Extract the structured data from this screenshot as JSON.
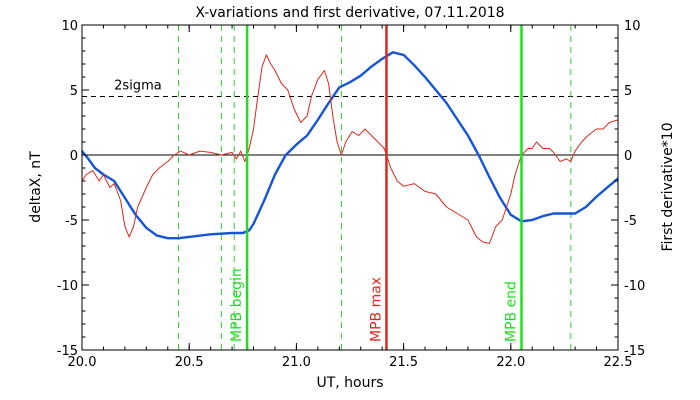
{
  "chart_data": {
    "type": "line",
    "title": "X-variations and first derivative, 07.11.2018",
    "xlabel": "UT, hours",
    "ylabel_left": "deltaX, nT",
    "ylabel_right": "First derivative*10",
    "xlim": [
      20.0,
      22.5
    ],
    "ylim": [
      -15,
      10
    ],
    "y2lim": [
      -15,
      10
    ],
    "x_ticks": [
      "20.0",
      "20.5",
      "21.0",
      "21.5",
      "22.0",
      "22.5"
    ],
    "x_tick_values": [
      20.0,
      20.5,
      21.0,
      21.5,
      22.0,
      22.5
    ],
    "y_ticks": [
      "10",
      "5",
      "0",
      "-5",
      "-10",
      "-15"
    ],
    "y_tick_values": [
      10,
      5,
      0,
      -5,
      -10,
      -15
    ],
    "y2_ticks": [
      "10",
      "5",
      "0",
      "-5",
      "-10",
      "-15"
    ],
    "y2_tick_values": [
      10,
      5,
      0,
      -5,
      -10,
      -15
    ],
    "colors": {
      "deltaX": "#1555d6",
      "derivative": "#d62b1f",
      "mpb": "#22dd22",
      "mpb_max": "#d62b1f",
      "dashed_green": "#33cc33",
      "axes": "#000000"
    },
    "threshold": {
      "label": "2sigma",
      "value": 4.5
    },
    "zero_line": 0,
    "markers": [
      {
        "x": 20.77,
        "label": "MPB begin",
        "color": "#22dd22"
      },
      {
        "x": 21.42,
        "label": "MPB max",
        "color": "#d62b1f"
      },
      {
        "x": 22.05,
        "label": "MPB end",
        "color": "#22dd22"
      }
    ],
    "dashed_verticals": [
      20.45,
      20.65,
      20.71,
      21.21,
      22.28
    ],
    "series": [
      {
        "key": "deltaX",
        "color": "#1555d6",
        "x": [
          20.0,
          20.03,
          20.06,
          20.1,
          20.15,
          20.2,
          20.25,
          20.3,
          20.35,
          20.4,
          20.45,
          20.5,
          20.6,
          20.7,
          20.75,
          20.78,
          20.8,
          20.85,
          20.9,
          20.95,
          21.0,
          21.05,
          21.1,
          21.15,
          21.2,
          21.25,
          21.3,
          21.35,
          21.4,
          21.45,
          21.5,
          21.55,
          21.6,
          21.7,
          21.8,
          21.85,
          21.9,
          21.95,
          22.0,
          22.05,
          22.1,
          22.15,
          22.2,
          22.25,
          22.3,
          22.35,
          22.4,
          22.45,
          22.5
        ],
        "values": [
          0.3,
          -0.3,
          -1.0,
          -1.5,
          -2.0,
          -3.3,
          -4.6,
          -5.6,
          -6.2,
          -6.4,
          -6.4,
          -6.3,
          -6.1,
          -6.0,
          -6.0,
          -5.8,
          -5.3,
          -3.5,
          -1.5,
          0.0,
          0.8,
          1.5,
          2.7,
          4.0,
          5.2,
          5.6,
          6.1,
          6.8,
          7.4,
          7.9,
          7.7,
          6.9,
          6.0,
          4.0,
          1.5,
          0.0,
          -1.7,
          -3.3,
          -4.6,
          -5.1,
          -5.0,
          -4.7,
          -4.5,
          -4.5,
          -4.5,
          -4.0,
          -3.2,
          -2.5,
          -1.8
        ]
      },
      {
        "key": "derivative",
        "color": "#d62b1f",
        "x": [
          20.0,
          20.02,
          20.05,
          20.08,
          20.1,
          20.13,
          20.15,
          20.18,
          20.2,
          20.22,
          20.24,
          20.26,
          20.3,
          20.33,
          20.36,
          20.4,
          20.43,
          20.46,
          20.5,
          20.55,
          20.6,
          20.65,
          20.7,
          20.72,
          20.74,
          20.76,
          20.78,
          20.8,
          20.82,
          20.84,
          20.86,
          20.88,
          20.9,
          20.93,
          20.96,
          20.99,
          21.02,
          21.05,
          21.07,
          21.1,
          21.13,
          21.15,
          21.17,
          21.19,
          21.21,
          21.23,
          21.26,
          21.29,
          21.32,
          21.35,
          21.38,
          21.41,
          21.44,
          21.47,
          21.5,
          21.55,
          21.6,
          21.65,
          21.7,
          21.75,
          21.8,
          21.84,
          21.87,
          21.9,
          21.93,
          21.96,
          22.0,
          22.02,
          22.05,
          22.08,
          22.1,
          22.12,
          22.15,
          22.18,
          22.2,
          22.23,
          22.26,
          22.28,
          22.3,
          22.33,
          22.36,
          22.4,
          22.43,
          22.46,
          22.5
        ],
        "values": [
          -2.0,
          -1.5,
          -1.2,
          -2.0,
          -1.5,
          -2.5,
          -2.2,
          -3.5,
          -5.5,
          -6.3,
          -5.5,
          -4.0,
          -2.5,
          -1.5,
          -1.0,
          -0.5,
          0.0,
          0.3,
          0.0,
          0.3,
          0.2,
          0.0,
          0.2,
          -0.3,
          0.3,
          -0.5,
          0.5,
          2.0,
          4.5,
          6.8,
          7.7,
          7.0,
          6.5,
          5.5,
          5.0,
          3.5,
          2.5,
          3.0,
          4.5,
          5.8,
          6.5,
          5.5,
          3.0,
          1.0,
          0.0,
          1.0,
          1.8,
          1.5,
          2.0,
          1.5,
          1.0,
          0.5,
          -1.0,
          -2.0,
          -2.4,
          -2.2,
          -2.8,
          -3.0,
          -4.0,
          -4.5,
          -5.0,
          -6.3,
          -6.7,
          -6.8,
          -5.5,
          -5.0,
          -3.0,
          -1.5,
          0.0,
          0.5,
          0.5,
          1.0,
          0.5,
          0.5,
          0.2,
          -0.5,
          -0.3,
          -0.5,
          0.3,
          1.0,
          1.5,
          2.0,
          2.0,
          2.5,
          2.7
        ]
      }
    ]
  }
}
